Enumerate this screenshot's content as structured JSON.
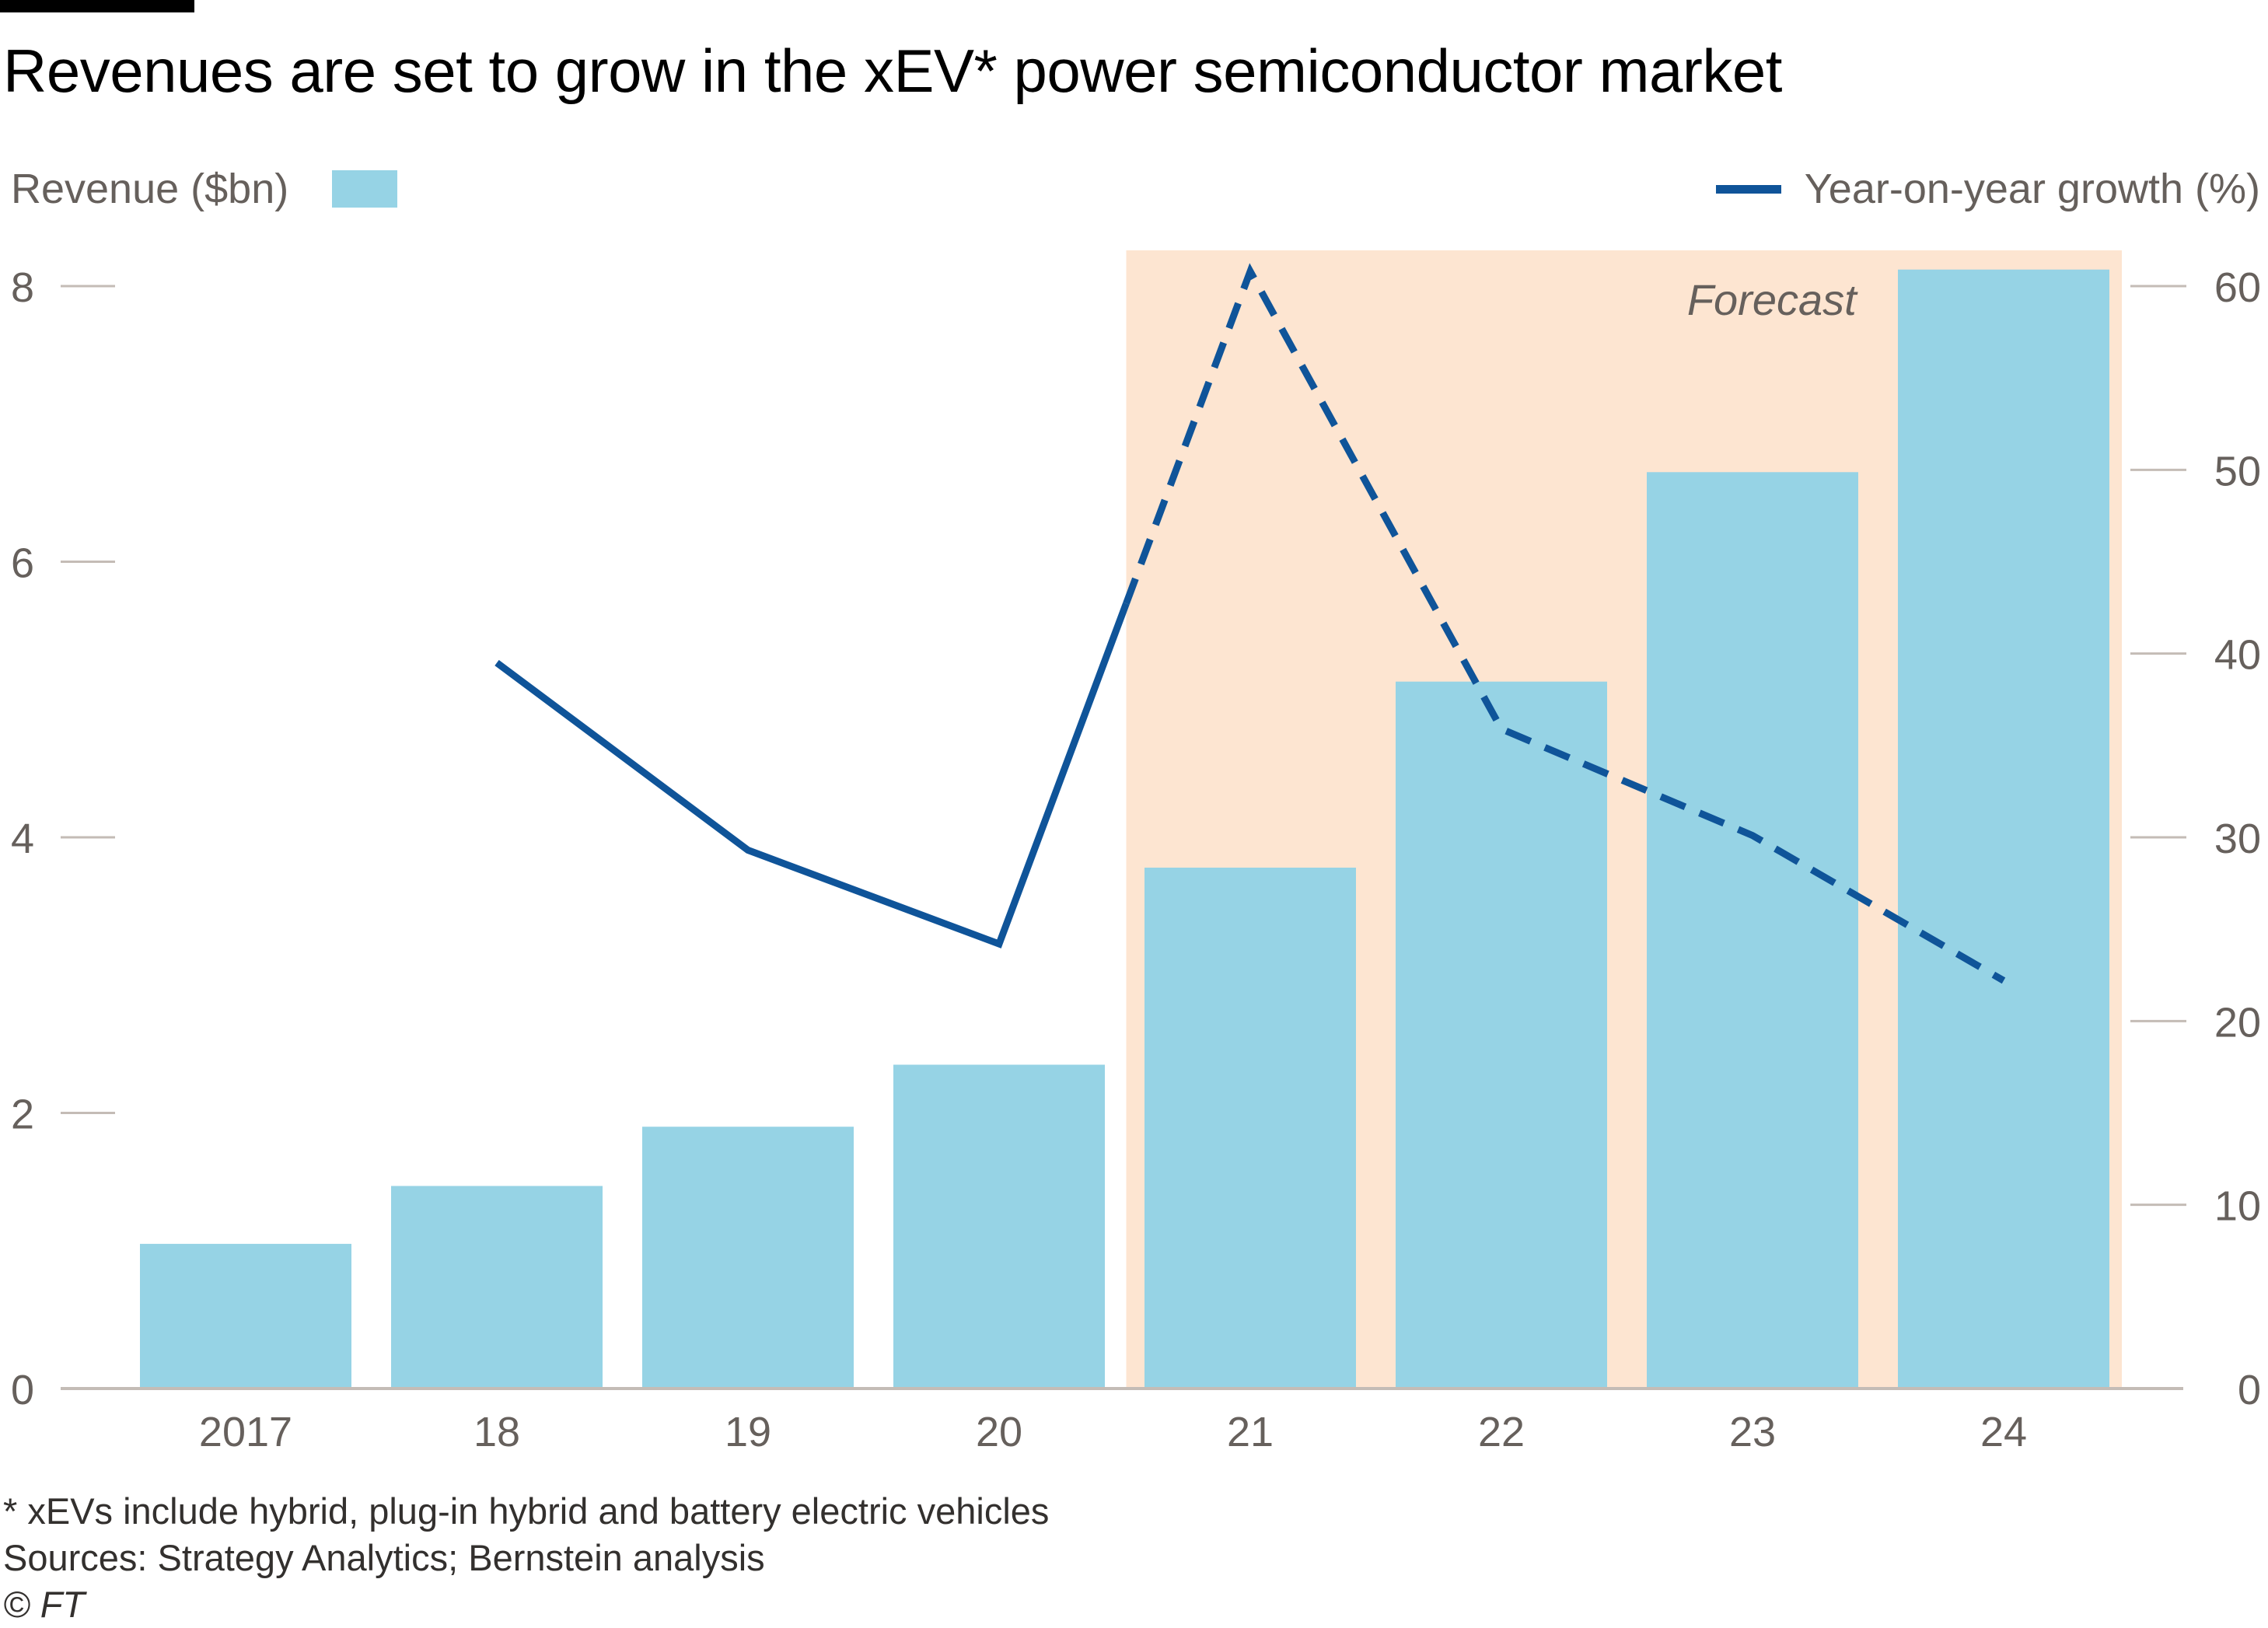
{
  "chart_data": {
    "type": "bar",
    "title": "Revenues are set to grow in the xEV* power semiconductor market",
    "categories": [
      "2017",
      "18",
      "19",
      "20",
      "21",
      "22",
      "23",
      "24"
    ],
    "series": [
      {
        "name": "Revenue ($bn)",
        "type": "bar",
        "axis": "left",
        "values": [
          1.05,
          1.47,
          1.9,
          2.35,
          3.78,
          5.13,
          6.65,
          8.12
        ],
        "color": "#96d3e5"
      },
      {
        "name": "Year-on-year growth (%)",
        "type": "line",
        "axis": "right",
        "values": [
          null,
          39.5,
          29.3,
          24.2,
          60.8,
          35.9,
          30.1,
          22.2
        ],
        "dashed_from_index": 4,
        "color": "#0f5499"
      }
    ],
    "y_left": {
      "ylim": [
        0,
        8
      ],
      "ticks": [
        0,
        2,
        4,
        6,
        8
      ]
    },
    "y_right": {
      "ylim": [
        0,
        60
      ],
      "ticks": [
        0,
        10,
        20,
        30,
        40,
        50,
        60
      ]
    },
    "forecast": {
      "label": "Forecast",
      "from_category": "21",
      "to_category": "24",
      "color": "#fde5d1"
    },
    "legend_placement": "top",
    "grid": false
  },
  "notes": {
    "footnote": "* xEVs include hybrid,  plug-in hybrid and battery electric vehicles",
    "sources": "Sources: Strategy Analytics; Bernstein analysis",
    "copyright": "© FT"
  },
  "colors": {
    "axis": "#c4bcb6",
    "tick_text": "#66605c",
    "text": "#33302e"
  }
}
